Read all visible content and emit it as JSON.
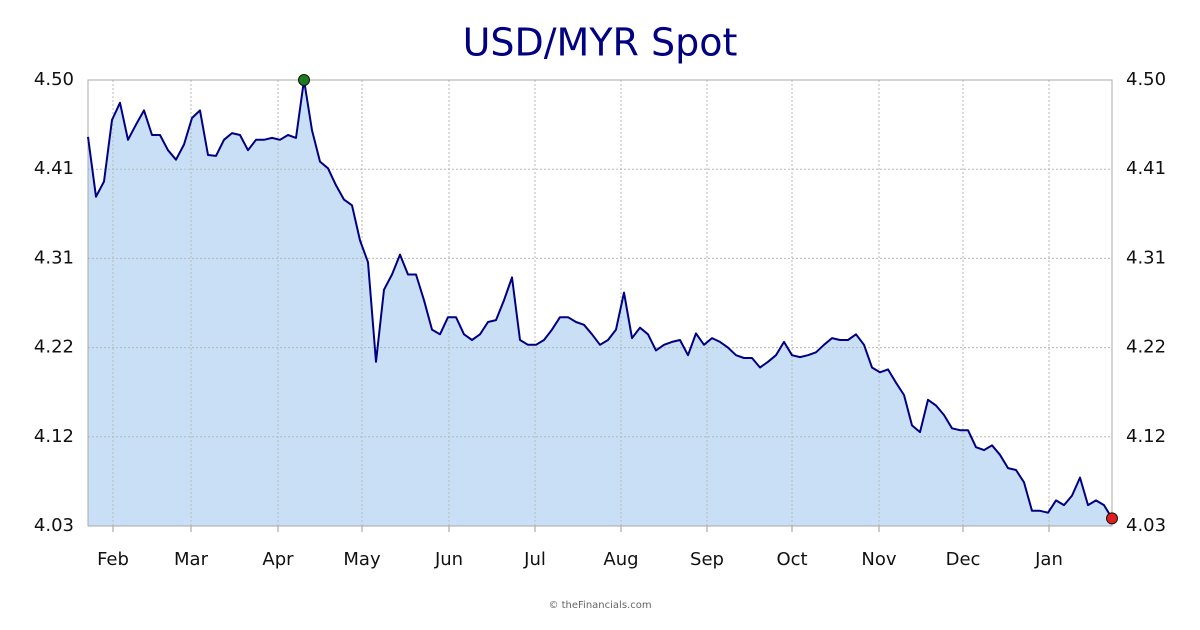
{
  "chart_data": {
    "type": "line",
    "title": "USD/MYR Spot",
    "values": [
      4.44,
      4.377,
      4.393,
      4.458,
      4.476,
      4.437,
      4.453,
      4.468,
      4.442,
      4.442,
      4.426,
      4.416,
      4.432,
      4.46,
      4.468,
      4.421,
      4.42,
      4.437,
      4.444,
      4.442,
      4.426,
      4.437,
      4.437,
      4.439,
      4.437,
      4.442,
      4.439,
      4.5,
      4.447,
      4.414,
      4.407,
      4.389,
      4.374,
      4.368,
      4.331,
      4.308,
      4.203,
      4.279,
      4.295,
      4.316,
      4.295,
      4.295,
      4.268,
      4.237,
      4.232,
      4.25,
      4.25,
      4.232,
      4.226,
      4.232,
      4.245,
      4.247,
      4.268,
      4.292,
      4.226,
      4.221,
      4.221,
      4.226,
      4.237,
      4.25,
      4.25,
      4.245,
      4.242,
      4.232,
      4.221,
      4.226,
      4.237,
      4.276,
      4.228,
      4.239,
      4.232,
      4.215,
      4.221,
      4.224,
      4.226,
      4.21,
      4.233,
      4.221,
      4.228,
      4.224,
      4.218,
      4.21,
      4.207,
      4.207,
      4.197,
      4.203,
      4.21,
      4.224,
      4.21,
      4.208,
      4.21,
      4.213,
      4.221,
      4.228,
      4.226,
      4.226,
      4.232,
      4.221,
      4.197,
      4.192,
      4.195,
      4.181,
      4.168,
      4.136,
      4.129,
      4.163,
      4.157,
      4.147,
      4.133,
      4.131,
      4.131,
      4.113,
      4.11,
      4.115,
      4.105,
      4.091,
      4.089,
      4.076,
      4.046,
      4.046,
      4.044,
      4.057,
      4.052,
      4.062,
      4.081,
      4.052,
      4.057,
      4.052,
      4.038
    ],
    "color": "#000080",
    "fill_color": "#c9dff5",
    "max_marker_color": "#1f7a1f",
    "last_marker_color": "#e01e1e",
    "xlim": [
      0,
      128
    ],
    "xticks": [
      {
        "value": 3.125,
        "label": "Feb"
      },
      {
        "value": 12.875,
        "label": "Mar"
      },
      {
        "value": 23.75,
        "label": "Apr"
      },
      {
        "value": 34.25,
        "label": "May"
      },
      {
        "value": 45.125,
        "label": "Jun"
      },
      {
        "value": 55.875,
        "label": "Jul"
      },
      {
        "value": 66.625,
        "label": "Aug"
      },
      {
        "value": 77.375,
        "label": "Sep"
      },
      {
        "value": 88,
        "label": "Oct"
      },
      {
        "value": 98.875,
        "label": "Nov"
      },
      {
        "value": 109.375,
        "label": "Dec"
      },
      {
        "value": 120.125,
        "label": "Jan"
      }
    ],
    "ylim": [
      4.03,
      4.5
    ],
    "yticks": [
      4.03,
      {
        "value": 4.124,
        "label": "4.12"
      },
      {
        "value": 4.218,
        "label": "4.22"
      },
      {
        "value": 4.312,
        "label": "4.31"
      },
      {
        "value": 4.406,
        "label": "4.41"
      },
      {
        "value": 4.5,
        "label": "4.50"
      }
    ],
    "grid": true,
    "source": "© theFinancials.com"
  }
}
